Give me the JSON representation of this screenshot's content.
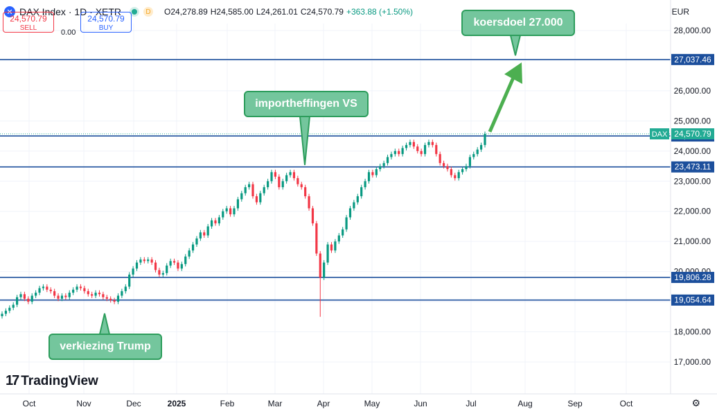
{
  "header": {
    "symbol_icon": "x-circle-icon",
    "title": "DAX Index · 1D · XETR",
    "o": "O24,278.89",
    "h": "H24,585.00",
    "l": "L24,261.01",
    "c": "C24,570.79",
    "change": "+363.88 (+1.50%)",
    "d_badge": "D",
    "currency": "EUR"
  },
  "trade": {
    "sell_price": "24,570.79",
    "sell_label": "SELL",
    "spread": "0.00",
    "buy_price": "24,570.79",
    "buy_label": "BUY"
  },
  "callouts": {
    "target": "koersdoel 27.000",
    "tariffs": "importheffingen VS",
    "election": "verkiezing Trump"
  },
  "logo": "TradingView",
  "colors": {
    "up": "#089981",
    "down": "#f23645",
    "hline": "#1c4f9c",
    "callout_fill": "#74c69d",
    "callout_border": "#2d9d5c",
    "arrow": "#4caf50",
    "current_price": "#22ab94"
  },
  "chart_data": {
    "type": "candlestick",
    "symbol": "DAX",
    "ylim": [
      16000,
      28400
    ],
    "y_ticks": [
      "17,000.00",
      "18,000.00",
      "19,000.00",
      "20,000.00",
      "21,000.00",
      "22,000.00",
      "23,000.00",
      "24,000.00",
      "25,000.00",
      "26,000.00",
      "27,000.00",
      "28,000.00"
    ],
    "x_ticks": [
      "Oct",
      "Nov",
      "Dec",
      "2025",
      "Feb",
      "Mar",
      "Apr",
      "May",
      "Jun",
      "Jul",
      "Aug",
      "Sep",
      "Oct"
    ],
    "current_price": {
      "label": "DAX",
      "value": 24570.79,
      "text": "24,570.79"
    },
    "levels": [
      {
        "value": 27037.46,
        "text": "27,037.46"
      },
      {
        "value": 24499.92,
        "text": "24,499.92"
      },
      {
        "value": 23473.11,
        "text": "23,473.11"
      },
      {
        "value": 19806.28,
        "text": "19,806.28"
      },
      {
        "value": 19054.64,
        "text": "19,054.64"
      }
    ],
    "closes": [
      18600,
      18700,
      18800,
      18900,
      19150,
      19250,
      19100,
      19000,
      19200,
      19300,
      19450,
      19500,
      19400,
      19350,
      19200,
      19100,
      19200,
      19150,
      19300,
      19400,
      19500,
      19450,
      19350,
      19250,
      19200,
      19300,
      19250,
      19150,
      19100,
      19050,
      19000,
      19200,
      19350,
      19500,
      19900,
      20100,
      20300,
      20400,
      20350,
      20400,
      20300,
      20050,
      19900,
      19950,
      20200,
      20350,
      20300,
      20100,
      20250,
      20500,
      20700,
      20900,
      21100,
      21300,
      21200,
      21500,
      21700,
      21600,
      21800,
      22000,
      22100,
      21900,
      22100,
      22400,
      22600,
      22800,
      22900,
      22500,
      22300,
      22600,
      22800,
      23000,
      23300,
      23150,
      22800,
      23000,
      23200,
      23300,
      23100,
      22900,
      22800,
      22500,
      22100,
      21600,
      20600,
      19800,
      20300,
      20900,
      20700,
      21000,
      21200,
      21400,
      21800,
      22100,
      22300,
      22500,
      22800,
      23000,
      23300,
      23200,
      23400,
      23500,
      23600,
      23800,
      23900,
      24000,
      23900,
      24100,
      24200,
      24300,
      24150,
      24000,
      23900,
      24200,
      24300,
      24200,
      23900,
      23600,
      23500,
      23400,
      23200,
      23100,
      23300,
      23400,
      23500,
      23800,
      23900,
      24050,
      24200,
      24570
    ],
    "spikes": [
      {
        "index": 85,
        "low": 18500
      }
    ]
  }
}
